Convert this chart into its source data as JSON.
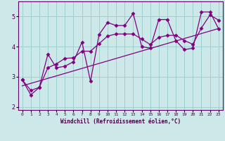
{
  "title": "",
  "xlabel": "Windchill (Refroidissement éolien,°C)",
  "background_color": "#cce8e8",
  "line_color": "#800080",
  "grid_color": "#99cccc",
  "xlim": [
    -0.5,
    23.5
  ],
  "ylim": [
    1.9,
    5.5
  ],
  "x_ticks": [
    0,
    1,
    2,
    3,
    4,
    5,
    6,
    7,
    8,
    9,
    10,
    11,
    12,
    13,
    14,
    15,
    16,
    17,
    18,
    19,
    20,
    21,
    22,
    23
  ],
  "y_ticks": [
    2,
    3,
    4,
    5
  ],
  "series1_x": [
    0,
    1,
    2,
    3,
    4,
    5,
    6,
    7,
    8,
    9,
    10,
    11,
    12,
    13,
    14,
    15,
    16,
    17,
    18,
    19,
    20,
    21,
    22,
    23
  ],
  "series1_y": [
    2.9,
    2.4,
    2.65,
    3.75,
    3.3,
    3.35,
    3.5,
    4.15,
    2.85,
    4.4,
    4.8,
    4.7,
    4.7,
    5.1,
    4.0,
    3.95,
    4.9,
    4.9,
    4.2,
    3.9,
    3.95,
    5.15,
    5.15,
    4.6
  ],
  "series2_y": [
    2.9,
    2.55,
    2.65,
    3.3,
    3.43,
    3.61,
    3.63,
    3.85,
    3.85,
    4.1,
    4.35,
    4.42,
    4.42,
    4.42,
    4.25,
    4.07,
    4.31,
    4.37,
    4.38,
    4.2,
    4.08,
    4.62,
    5.05,
    4.88
  ],
  "trend_start_y": 2.7,
  "trend_end_y": 4.6,
  "marker": "D",
  "markersize": 2.5,
  "linewidth": 0.9
}
